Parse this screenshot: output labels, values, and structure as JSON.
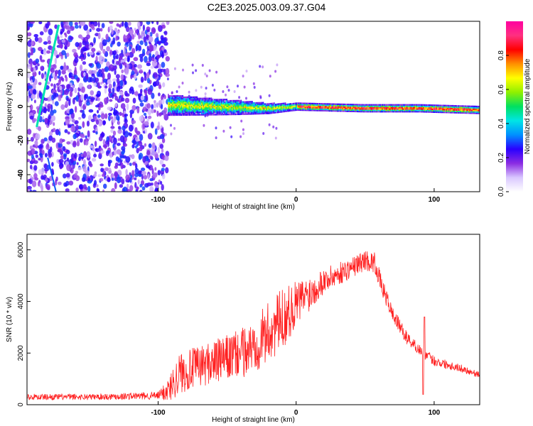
{
  "page": {
    "title": "C2E3.2025.003.09.37.G04"
  },
  "chart_data": [
    {
      "type": "heatmap",
      "xlabel": "Height of straight line (km)",
      "ylabel": "Frequency (Hz)",
      "xlim": [
        -195,
        133
      ],
      "ylim": [
        -50,
        50
      ],
      "xticks": [
        -100,
        0,
        100
      ],
      "yticks": [
        -40,
        -20,
        0,
        20,
        40
      ],
      "colorbar": {
        "label": "Normalized spectral amplitude",
        "range": [
          0,
          1
        ],
        "ticks": [
          0,
          0.2,
          0.4,
          0.6,
          0.8
        ],
        "colors": [
          "#ffffff",
          "#d9c7ff",
          "#8a2be2",
          "#2a00ff",
          "#0090ff",
          "#00e5e5",
          "#00e060",
          "#90f000",
          "#ffff00",
          "#ff9000",
          "#ff0000",
          "#ff3080",
          "#ff00a0"
        ]
      },
      "features": {
        "noise_region_x": [
          -195,
          -93
        ],
        "signal_center_hz": [
          [
            -93,
            1
          ],
          [
            -60,
            0
          ],
          [
            -20,
            -1
          ],
          [
            0,
            0
          ],
          [
            50,
            -1
          ],
          [
            90,
            -1
          ],
          [
            133,
            -2
          ]
        ],
        "signal_halfwidth_hz": [
          [
            -93,
            6
          ],
          [
            -40,
            4
          ],
          [
            -20,
            3
          ],
          [
            0,
            2
          ],
          [
            133,
            2
          ]
        ],
        "diagonal_trace": [
          [
            -188,
            -12
          ],
          [
            -172,
            48
          ]
        ]
      }
    },
    {
      "type": "line",
      "xlabel": "Height of straight line (km)",
      "ylabel": "SNR (10 * v/v)",
      "xlim": [
        -195,
        133
      ],
      "ylim": [
        0,
        6600
      ],
      "xticks": [
        -100,
        0,
        100
      ],
      "yticks": [
        0,
        2000,
        4000,
        6000
      ],
      "color": "#ff2020",
      "envelope": {
        "x": [
          -195,
          -150,
          -100,
          -92,
          -85,
          -70,
          -50,
          -35,
          -20,
          -10,
          0,
          20,
          40,
          50,
          57,
          62,
          70,
          80,
          92,
          100,
          120,
          133
        ],
        "y": [
          300,
          300,
          350,
          600,
          1200,
          1500,
          1800,
          2100,
          2800,
          3300,
          3900,
          4800,
          5300,
          5600,
          5500,
          4600,
          3500,
          2600,
          2000,
          1700,
          1400,
          1150
        ],
        "spread": [
          120,
          120,
          150,
          500,
          800,
          800,
          900,
          1000,
          1200,
          1200,
          900,
          500,
          400,
          400,
          400,
          350,
          300,
          250,
          200,
          200,
          150,
          120
        ]
      }
    }
  ]
}
